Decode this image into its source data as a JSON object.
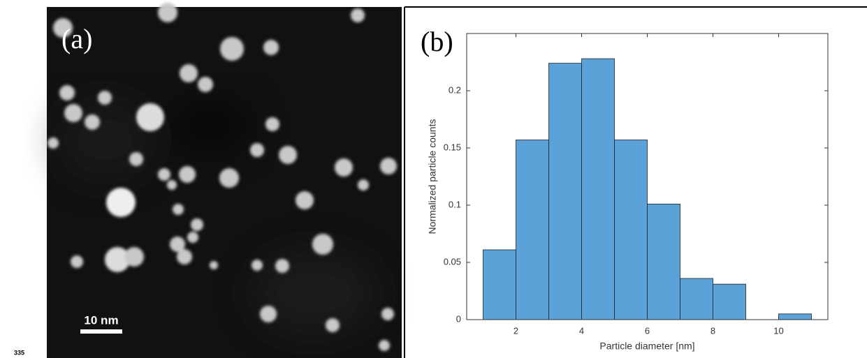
{
  "page_number": "335",
  "panel_a": {
    "label": "(a)",
    "scale_bar": "10 nm"
  },
  "chart_data": {
    "type": "histogram",
    "panel_label": "(b)",
    "x_label": "Particle diameter [nm]",
    "y_label": "Normalized particle counts",
    "bins": [
      1,
      2,
      3,
      4,
      5,
      6,
      7,
      8,
      9,
      10,
      11
    ],
    "values": [
      0.061,
      0.157,
      0.224,
      0.228,
      0.157,
      0.101,
      0.036,
      0.031,
      0,
      0.005
    ],
    "color": "#5aa2d8",
    "xlim": [
      0.5,
      11.5
    ],
    "xticks": [
      2,
      4,
      6,
      8,
      10
    ],
    "ylim": [
      0,
      0.25
    ],
    "yticks": [
      0,
      0.05,
      0.1,
      0.15,
      0.2
    ]
  }
}
